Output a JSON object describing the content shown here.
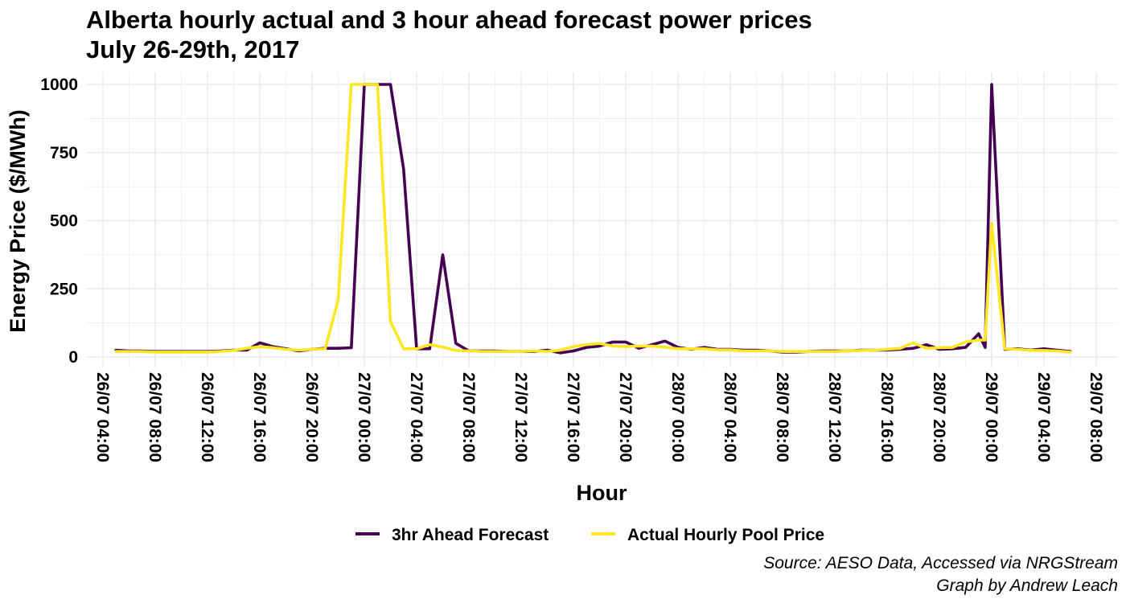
{
  "chart_data": {
    "type": "line",
    "title": "Alberta hourly actual and 3 hour ahead forecast power prices",
    "subtitle": "July 26-29th, 2017",
    "xlabel": "Hour",
    "ylabel": "Energy Price ($/MWh)",
    "caption_lines": [
      "Source: AESO Data, Accessed via NRGStream",
      "Graph by Andrew Leach"
    ],
    "xlim": [
      "2017-07-26 04:00",
      "2017-07-29 08:00"
    ],
    "ylim": [
      0,
      1000
    ],
    "x_ticks": [
      "26/07 04:00",
      "26/07 08:00",
      "26/07 12:00",
      "26/07 16:00",
      "26/07 20:00",
      "27/07 00:00",
      "27/07 04:00",
      "27/07 08:00",
      "27/07 12:00",
      "27/07 16:00",
      "27/07 20:00",
      "28/07 00:00",
      "28/07 04:00",
      "28/07 08:00",
      "28/07 12:00",
      "28/07 16:00",
      "28/07 20:00",
      "29/07 00:00",
      "29/07 04:00",
      "29/07 08:00"
    ],
    "y_ticks": [
      "0",
      "250",
      "500",
      "750",
      "1000"
    ],
    "legend_position": "bottom",
    "grid": true,
    "x": [
      "2017-07-26 05:00",
      "2017-07-26 06:00",
      "2017-07-26 07:00",
      "2017-07-26 08:00",
      "2017-07-26 09:00",
      "2017-07-26 10:00",
      "2017-07-26 11:00",
      "2017-07-26 12:00",
      "2017-07-26 13:00",
      "2017-07-26 14:00",
      "2017-07-26 15:00",
      "2017-07-26 16:00",
      "2017-07-26 17:00",
      "2017-07-26 18:00",
      "2017-07-26 19:00",
      "2017-07-26 20:00",
      "2017-07-26 21:00",
      "2017-07-26 22:00",
      "2017-07-26 23:00",
      "2017-07-27 00:00",
      "2017-07-27 01:00",
      "2017-07-27 02:00",
      "2017-07-27 03:00",
      "2017-07-27 04:00",
      "2017-07-27 05:00",
      "2017-07-27 06:00",
      "2017-07-27 07:00",
      "2017-07-27 08:00",
      "2017-07-27 09:00",
      "2017-07-27 10:00",
      "2017-07-27 11:00",
      "2017-07-27 12:00",
      "2017-07-27 13:00",
      "2017-07-27 14:00",
      "2017-07-27 15:00",
      "2017-07-27 16:00",
      "2017-07-27 17:00",
      "2017-07-27 18:00",
      "2017-07-27 19:00",
      "2017-07-27 20:00",
      "2017-07-27 21:00",
      "2017-07-27 22:00",
      "2017-07-27 23:00",
      "2017-07-28 00:00",
      "2017-07-28 01:00",
      "2017-07-28 02:00",
      "2017-07-28 03:00",
      "2017-07-28 04:00",
      "2017-07-28 05:00",
      "2017-07-28 06:00",
      "2017-07-28 07:00",
      "2017-07-28 08:00",
      "2017-07-28 09:00",
      "2017-07-28 10:00",
      "2017-07-28 11:00",
      "2017-07-28 12:00",
      "2017-07-28 13:00",
      "2017-07-28 14:00",
      "2017-07-28 15:00",
      "2017-07-28 16:00",
      "2017-07-28 17:00",
      "2017-07-28 18:00",
      "2017-07-28 19:00",
      "2017-07-28 20:00",
      "2017-07-28 21:00",
      "2017-07-28 22:00",
      "2017-07-28 23:00",
      "2017-07-28 23:30",
      "2017-07-29 00:00",
      "2017-07-29 01:00",
      "2017-07-29 02:00",
      "2017-07-29 03:00",
      "2017-07-29 04:00",
      "2017-07-29 05:00",
      "2017-07-29 06:00"
    ],
    "series": [
      {
        "name": "3hr Ahead Forecast",
        "color": "#440154",
        "values": [
          25,
          22,
          22,
          20,
          20,
          20,
          20,
          20,
          22,
          25,
          25,
          52,
          38,
          30,
          22,
          28,
          32,
          32,
          34,
          1000,
          1000,
          1000,
          690,
          30,
          30,
          375,
          50,
          22,
          22,
          22,
          20,
          20,
          20,
          25,
          15,
          22,
          35,
          40,
          55,
          55,
          32,
          45,
          58,
          35,
          28,
          35,
          28,
          28,
          25,
          25,
          22,
          18,
          18,
          20,
          22,
          22,
          22,
          25,
          25,
          25,
          28,
          32,
          45,
          28,
          30,
          35,
          85,
          35,
          1000,
          28,
          30,
          25,
          30,
          25,
          20
        ]
      },
      {
        "name": "Actual Hourly Pool Price",
        "color": "#fde725",
        "values": [
          20,
          20,
          20,
          18,
          18,
          18,
          18,
          18,
          20,
          24,
          32,
          38,
          34,
          28,
          25,
          28,
          30,
          210,
          1000,
          1000,
          1000,
          130,
          30,
          30,
          45,
          36,
          24,
          22,
          20,
          20,
          20,
          20,
          22,
          20,
          25,
          38,
          45,
          50,
          40,
          38,
          40,
          40,
          36,
          30,
          30,
          30,
          26,
          26,
          22,
          22,
          22,
          20,
          20,
          20,
          20,
          20,
          22,
          24,
          25,
          28,
          32,
          52,
          32,
          34,
          35,
          55,
          62,
          62,
          490,
          30,
          28,
          24,
          24,
          22,
          18
        ]
      }
    ]
  }
}
